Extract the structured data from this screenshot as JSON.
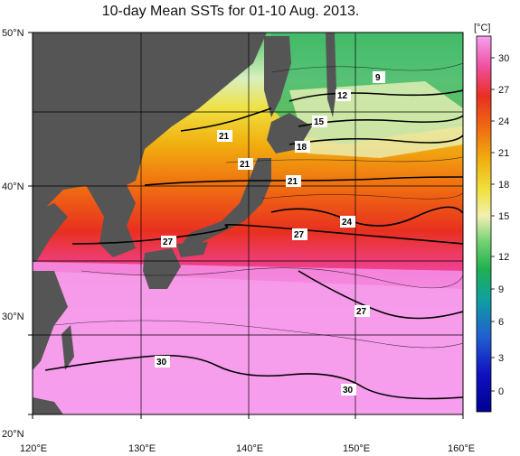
{
  "title": "10-day Mean SSTs for 01-10 Aug. 2013.",
  "map": {
    "lat_range": [
      20,
      50
    ],
    "lon_range": [
      120,
      160
    ],
    "lat_labels": [
      "50°N",
      "40°N",
      "30°N",
      "20°N"
    ],
    "lon_labels": [
      "120°E",
      "130°E",
      "140°E",
      "150°E",
      "160°E"
    ]
  },
  "colorbar": {
    "unit": "[°C]",
    "tick_labels": [
      "30",
      "27",
      "24",
      "21",
      "18",
      "15",
      "12",
      "9",
      "6",
      "3",
      "0"
    ],
    "colors_top_to_bottom": [
      "#f6a0f0",
      "#f050a0",
      "#e83020",
      "#f07010",
      "#f0b010",
      "#f0e040",
      "#f0f0b0",
      "#d8f0c0",
      "#70d070",
      "#20b050",
      "#10a0a0",
      "#2060d0",
      "#1010c0",
      "#000090"
    ]
  },
  "contour_labels": [
    "9",
    "12",
    "15",
    "18",
    "21",
    "21",
    "24",
    "27",
    "27",
    "27",
    "30",
    "30",
    "21"
  ],
  "colors": {
    "land": "#555555",
    "grid": "#000000"
  }
}
